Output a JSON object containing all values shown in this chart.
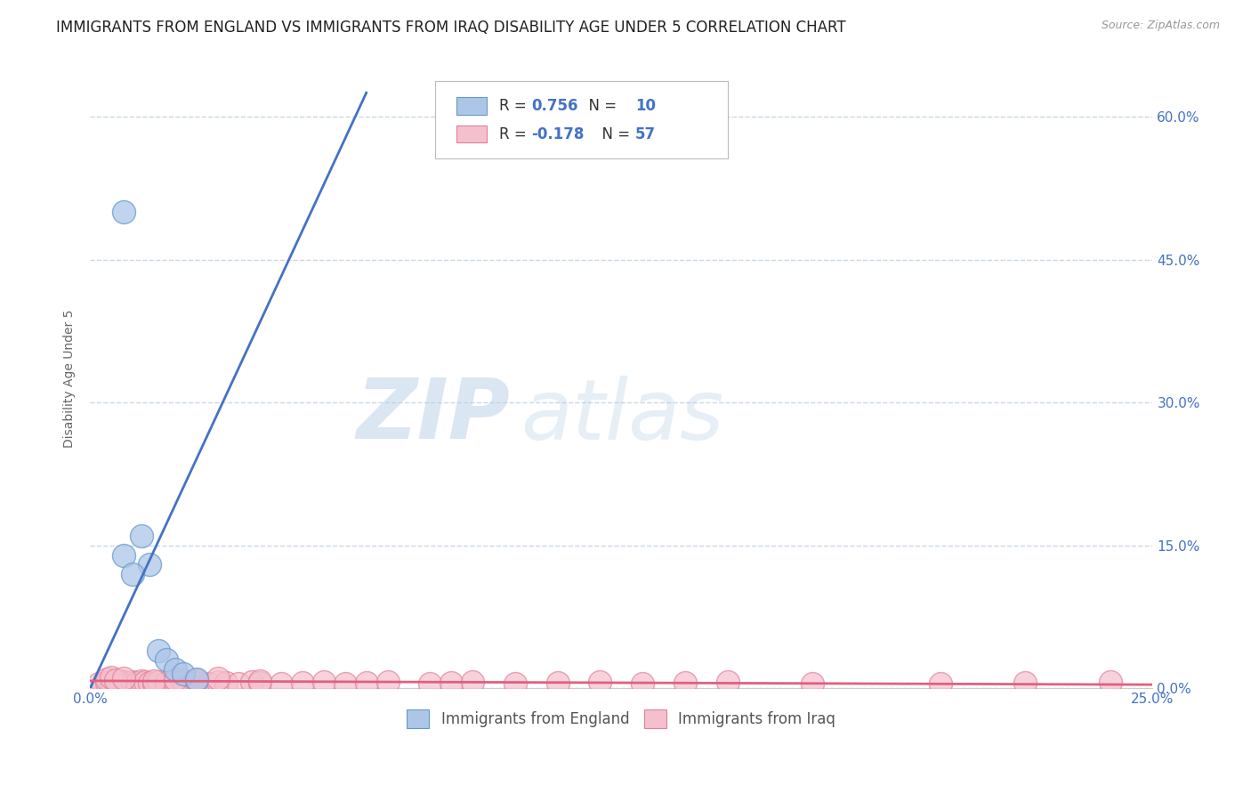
{
  "title": "IMMIGRANTS FROM ENGLAND VS IMMIGRANTS FROM IRAQ DISABILITY AGE UNDER 5 CORRELATION CHART",
  "source_text": "Source: ZipAtlas.com",
  "ylabel": "Disability Age Under 5",
  "watermark_zip": "ZIP",
  "watermark_atlas": "atlas",
  "xmin": 0.0,
  "xmax": 0.25,
  "ymin": 0.0,
  "ymax": 0.65,
  "xtick_positions": [
    0.0,
    0.05,
    0.1,
    0.15,
    0.2,
    0.25
  ],
  "xticklabels_shown": [
    "0.0%",
    "",
    "",
    "",
    "",
    "25.0%"
  ],
  "ytick_positions": [
    0.0,
    0.15,
    0.3,
    0.45,
    0.6
  ],
  "ytick_labels_right": [
    "0.0%",
    "15.0%",
    "30.0%",
    "45.0%",
    "60.0%"
  ],
  "legend_england_label": "Immigrants from England",
  "legend_iraq_label": "Immigrants from Iraq",
  "england_R": "0.756",
  "england_N": "10",
  "iraq_R": "-0.178",
  "iraq_N": "57",
  "england_color": "#adc6e8",
  "england_edge_color": "#6699cc",
  "england_line_color": "#4472c4",
  "iraq_color": "#f5c0ce",
  "iraq_edge_color": "#e08098",
  "iraq_line_color": "#e06080",
  "england_scatter_x": [
    0.008,
    0.012,
    0.014,
    0.016,
    0.018,
    0.02,
    0.022,
    0.025,
    0.008,
    0.01
  ],
  "england_scatter_y": [
    0.5,
    0.16,
    0.13,
    0.04,
    0.03,
    0.02,
    0.015,
    0.01,
    0.14,
    0.12
  ],
  "iraq_scatter_x": [
    0.002,
    0.003,
    0.004,
    0.005,
    0.005,
    0.006,
    0.007,
    0.007,
    0.008,
    0.008,
    0.009,
    0.01,
    0.01,
    0.011,
    0.012,
    0.013,
    0.014,
    0.015,
    0.016,
    0.018,
    0.02,
    0.022,
    0.025,
    0.028,
    0.03,
    0.032,
    0.035,
    0.038,
    0.04,
    0.045,
    0.05,
    0.055,
    0.06,
    0.065,
    0.07,
    0.08,
    0.085,
    0.09,
    0.1,
    0.11,
    0.12,
    0.13,
    0.14,
    0.15,
    0.17,
    0.2,
    0.22,
    0.24,
    0.004,
    0.005,
    0.006,
    0.008,
    0.015,
    0.02,
    0.025,
    0.03,
    0.04
  ],
  "iraq_scatter_y": [
    0.005,
    0.004,
    0.006,
    0.007,
    0.008,
    0.005,
    0.006,
    0.008,
    0.005,
    0.007,
    0.006,
    0.005,
    0.007,
    0.006,
    0.008,
    0.007,
    0.006,
    0.005,
    0.007,
    0.006,
    0.007,
    0.008,
    0.006,
    0.005,
    0.007,
    0.006,
    0.005,
    0.007,
    0.006,
    0.005,
    0.006,
    0.007,
    0.005,
    0.006,
    0.007,
    0.005,
    0.006,
    0.007,
    0.005,
    0.006,
    0.007,
    0.005,
    0.006,
    0.007,
    0.005,
    0.005,
    0.006,
    0.007,
    0.01,
    0.012,
    0.009,
    0.011,
    0.008,
    0.01,
    0.009,
    0.011,
    0.008
  ],
  "england_trend_x": [
    0.0,
    0.065
  ],
  "england_trend_y": [
    0.0,
    0.625
  ],
  "iraq_trend_x": [
    0.0,
    0.25
  ],
  "iraq_trend_y": [
    0.008,
    0.004
  ],
  "title_fontsize": 12,
  "axis_label_fontsize": 10,
  "tick_fontsize": 11,
  "legend_fontsize": 12,
  "watermark_fontsize_zip": 68,
  "watermark_fontsize_atlas": 68,
  "scatter_size": 350,
  "background_color": "#ffffff",
  "grid_color": "#c8d8e8",
  "title_color": "#222222",
  "tick_color": "#4472c4",
  "ylabel_color": "#666666"
}
